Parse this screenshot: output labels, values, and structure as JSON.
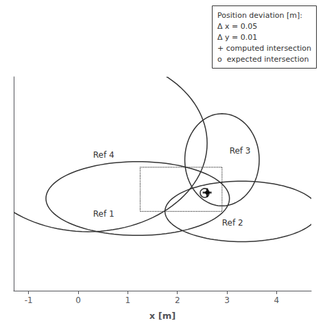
{
  "chart_data": {
    "type": "ellipses",
    "xlabel": "x [m]",
    "xlim": [
      -1.3,
      4.7
    ],
    "xticks": [
      -1,
      0,
      1,
      2,
      3,
      4
    ],
    "ylim": [
      1.2,
      7.0
    ],
    "tick_labels": "x",
    "grid": false,
    "ellipses": [
      {
        "label": "Ref 4",
        "cx": 0.2,
        "cy": 5.2,
        "rx": 2.4,
        "ry": 2.4,
        "angle": 0,
        "label_x": 0.3,
        "label_y": 5.0
      },
      {
        "label": "Ref 1",
        "cx": 1.2,
        "cy": 3.7,
        "rx": 1.85,
        "ry": 1.0,
        "angle": 0,
        "label_x": 0.3,
        "label_y": 3.4
      },
      {
        "label": "Ref 2",
        "cx": 3.3,
        "cy": 3.35,
        "rx": 1.55,
        "ry": 0.82,
        "angle": 0,
        "label_x": 2.9,
        "label_y": 3.15
      },
      {
        "label": "Ref 3",
        "cx": 2.9,
        "cy": 4.75,
        "rx": 0.75,
        "ry": 1.25,
        "angle": 0,
        "label_x": 3.05,
        "label_y": 5.1
      }
    ],
    "rectangle": {
      "x0": 1.25,
      "y0": 3.35,
      "x1": 2.9,
      "y1": 4.55,
      "line_style": "dotted"
    },
    "points": [
      {
        "x": 2.55,
        "y": 3.85,
        "marker": "circle"
      },
      {
        "x": 2.6,
        "y": 3.86,
        "marker": "plus"
      }
    ],
    "annotations": [
      "Position deviation [m]:",
      "Δ x = 0.05",
      "Δ y = 0.01",
      "+ computed intersection",
      "o  expected intersection"
    ]
  }
}
